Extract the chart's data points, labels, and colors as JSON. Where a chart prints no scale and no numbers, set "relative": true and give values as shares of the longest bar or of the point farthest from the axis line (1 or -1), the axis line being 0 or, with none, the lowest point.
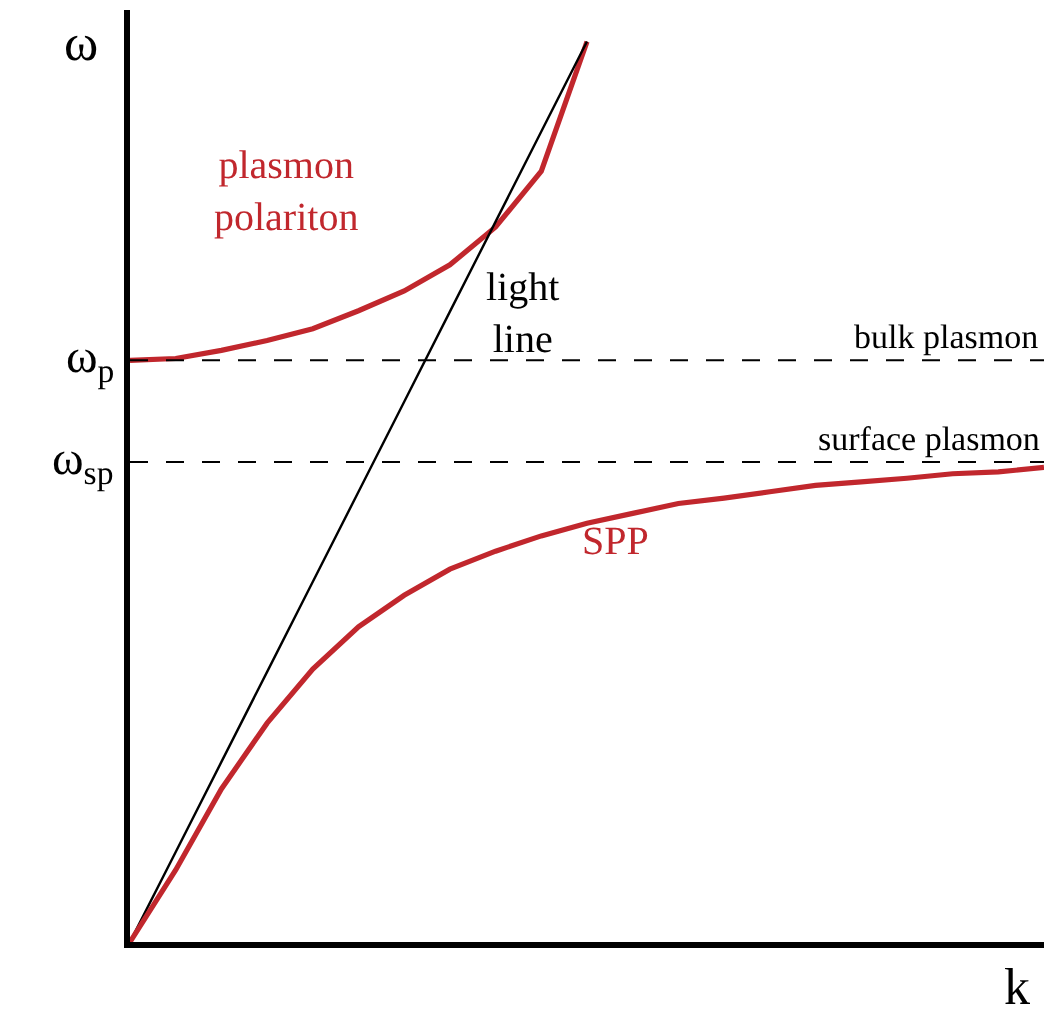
{
  "chart_data": {
    "type": "line",
    "xlabel": "k",
    "ylabel": "ω",
    "legend": false,
    "marker": "none",
    "line_style": "solid",
    "categories": [
      null,
      null,
      null,
      null,
      null,
      null,
      null,
      null,
      null,
      null,
      null,
      null,
      null,
      null,
      null,
      null,
      null,
      null,
      null,
      null,
      null
    ],
    "relative": true,
    "series": [
      {
        "name": "plasmon polariton",
        "color": "#c1272d",
        "values": [
          0.646,
          0.648,
          0.657,
          0.668,
          0.681,
          0.701,
          0.723,
          0.752,
          0.794,
          0.856,
          1,
          null,
          null,
          null,
          null,
          null,
          null,
          null,
          null,
          null,
          null
        ]
      },
      {
        "name": "light line",
        "color": "#000000",
        "values": [
          0,
          0.1,
          0.2,
          0.3,
          0.4,
          0.5,
          0.6,
          0.7,
          0.8,
          0.9,
          1,
          null,
          null,
          null,
          null,
          null,
          null,
          null,
          null,
          null,
          null
        ]
      },
      {
        "name": "SPP",
        "color": "#c1272d",
        "values": [
          0,
          0.08,
          0.17,
          0.243,
          0.303,
          0.35,
          0.385,
          0.414,
          0.434,
          0.451,
          0.465,
          0.476,
          0.487,
          0.493,
          0.5,
          0.507,
          0.511,
          0.515,
          0.52,
          0.522,
          0.527
        ]
      }
    ],
    "ref_lines": [
      {
        "axis": "y",
        "value": 0.646,
        "label": "bulk plasmon",
        "color": "#000000",
        "line_style": "dashed"
      },
      {
        "axis": "y",
        "value": 0.533,
        "label": "surface plasmon",
        "color": "#000000",
        "line_style": "dashed"
      }
    ],
    "annotations": [
      "ω$_{p}$",
      "ω$_{sp}$"
    ]
  }
}
